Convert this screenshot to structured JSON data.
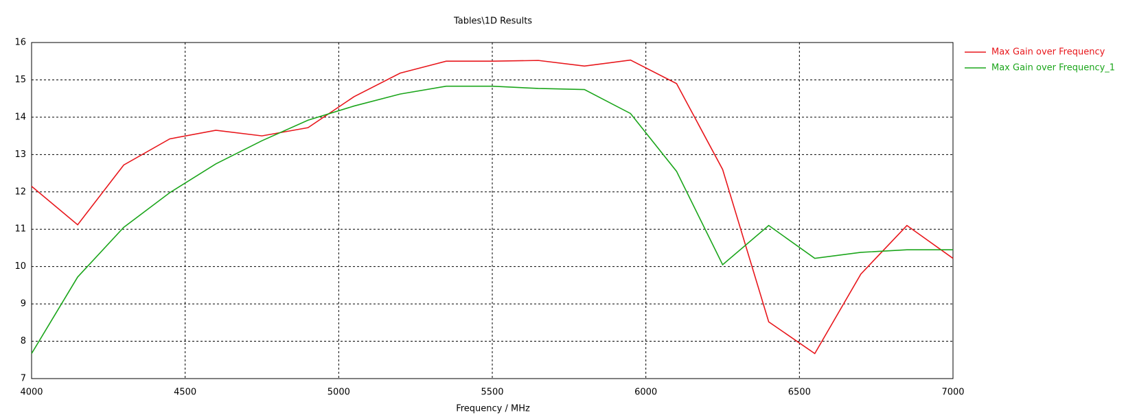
{
  "chart_data": {
    "type": "line",
    "title": "Tables\\1D Results",
    "x_label": "Frequency / MHz",
    "x": [
      4000,
      4150,
      4300,
      4450,
      4600,
      4750,
      4900,
      5050,
      5200,
      5350,
      5500,
      5650,
      5800,
      5950,
      6100,
      6250,
      6400,
      6550,
      6700,
      6850,
      7000
    ],
    "series": [
      {
        "name": "Max Gain over Frequency",
        "color": "#e8161b",
        "values": [
          12.15,
          11.12,
          12.72,
          13.42,
          13.65,
          13.5,
          13.72,
          14.55,
          15.18,
          15.5,
          15.5,
          15.52,
          15.37,
          15.53,
          14.9,
          12.6,
          8.52,
          7.67,
          9.8,
          11.1,
          10.22
        ]
      },
      {
        "name": "Max Gain over Frequency_1",
        "color": "#1aa51a",
        "values": [
          7.67,
          9.72,
          11.05,
          11.98,
          12.75,
          13.37,
          13.92,
          14.3,
          14.62,
          14.83,
          14.83,
          14.77,
          14.74,
          14.1,
          12.55,
          10.05,
          11.1,
          10.22,
          10.38,
          10.45,
          10.45
        ]
      }
    ],
    "xlim": [
      4000,
      7000
    ],
    "xticks": [
      4000,
      4500,
      5000,
      5500,
      6000,
      6500,
      7000
    ],
    "ylim": [
      7,
      16
    ],
    "yticks": [
      7,
      8,
      9,
      10,
      11,
      12,
      13,
      14,
      15,
      16
    ],
    "grid": true
  }
}
